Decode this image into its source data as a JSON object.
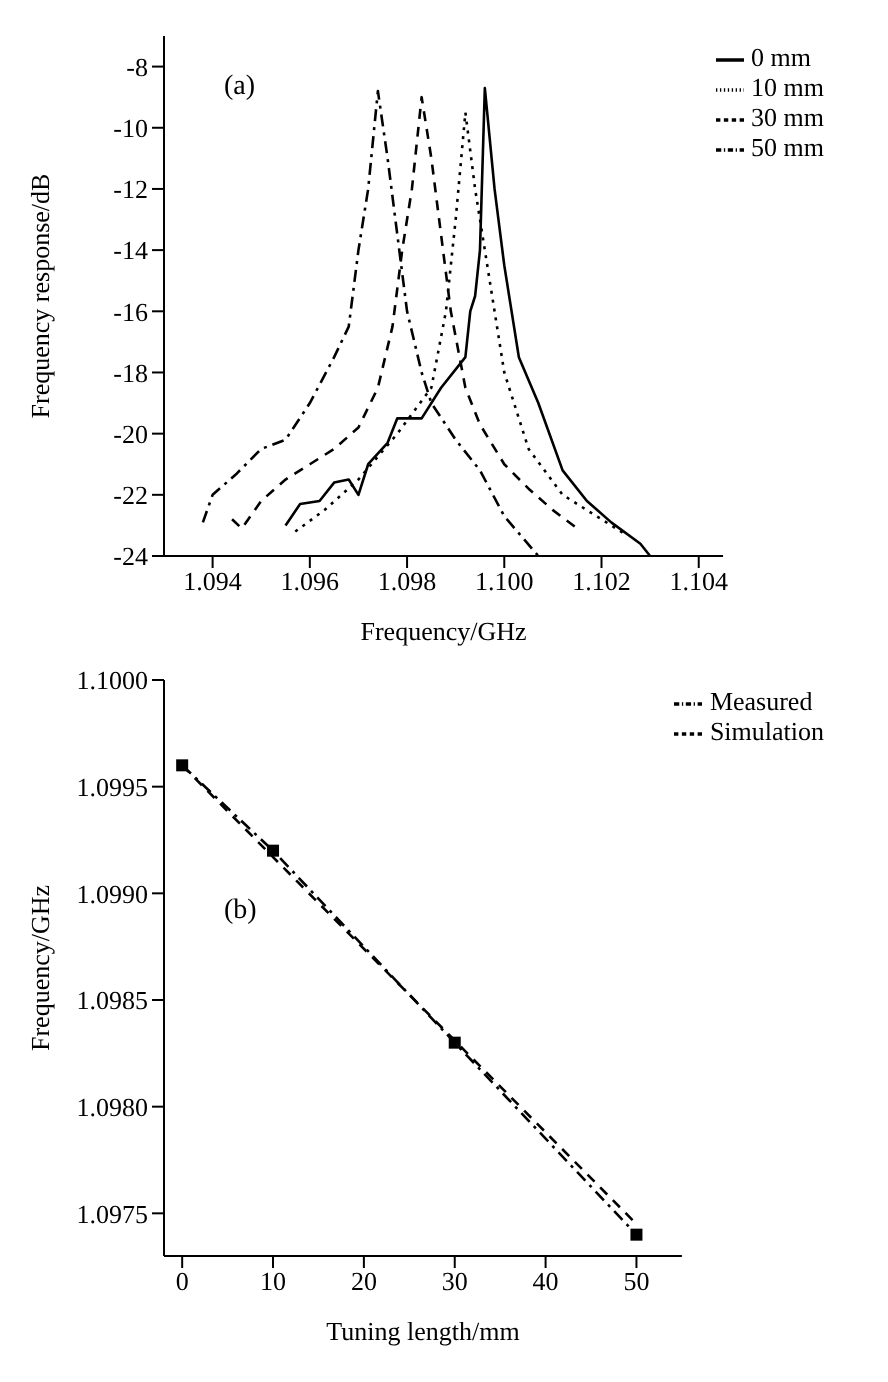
{
  "chart_data": [
    {
      "type": "line",
      "xlabel": "Frequency/GHz",
      "ylabel": "Frequency response/dB",
      "annotations": [
        "(a)"
      ],
      "xlim": [
        1.093,
        1.1045
      ],
      "ylim": [
        -24,
        -7
      ],
      "xticks": [
        1.094,
        1.096,
        1.098,
        {
          "value": 1.1,
          "label": "1.100"
        },
        1.102,
        1.104
      ],
      "yticks": [
        -24,
        -22,
        -20,
        -18,
        -16,
        -14,
        -12,
        -10,
        -8
      ],
      "legend": "top right",
      "grid": false,
      "marker": "none",
      "series": [
        {
          "name": "0 mm",
          "color": "#000000",
          "line_style": "solid",
          "x": [
            1.0955,
            1.0958,
            1.0962,
            1.0965,
            1.0968,
            1.097,
            1.0972,
            1.0976,
            1.0978,
            1.0983,
            1.0987,
            1.0992,
            1.0993,
            1.0994,
            1.0995,
            1.0996,
            1.0998,
            1.1,
            1.1003,
            1.1007,
            1.1012,
            1.1017,
            1.1022,
            1.1028,
            1.103
          ],
          "values": [
            -23,
            -22.3,
            -22.2,
            -21.6,
            -21.5,
            -22,
            -21,
            -20.3,
            -19.5,
            -19.5,
            -18.5,
            -17.5,
            -16,
            -15.5,
            -14,
            -8.7,
            -12,
            -14.5,
            -17.5,
            -19,
            -21.2,
            -22.2,
            -22.9,
            -23.6,
            -24
          ]
        },
        {
          "name": "10 mm",
          "color": "#000000",
          "line_style": "dotted",
          "x": [
            1.0957,
            1.0963,
            1.097,
            1.0978,
            1.0985,
            1.0988,
            1.099,
            1.0992,
            1.0994,
            1.0997,
            1.1,
            1.1005,
            1.1012,
            1.102,
            1.1025
          ],
          "values": [
            -23.2,
            -22.5,
            -21.5,
            -20,
            -18.5,
            -16,
            -13,
            -9.5,
            -12,
            -15,
            -18,
            -20.5,
            -22,
            -22.8,
            -23.3
          ]
        },
        {
          "name": "30 mm",
          "color": "#000000",
          "line_style": "dashed",
          "x": [
            1.0944,
            1.0946,
            1.095,
            1.0955,
            1.096,
            1.0965,
            1.097,
            1.0974,
            1.0977,
            1.0979,
            1.0981,
            1.0983,
            1.0985,
            1.0987,
            1.0989,
            1.0992,
            1.0995,
            1.1,
            1.1005,
            1.101,
            1.1015
          ],
          "values": [
            -22.8,
            -23.1,
            -22.2,
            -21.5,
            -21,
            -20.5,
            -19.8,
            -18.5,
            -16.5,
            -14,
            -12,
            -9,
            -11,
            -13.5,
            -16,
            -18.5,
            -19.7,
            -21,
            -21.8,
            -22.5,
            -23.1
          ]
        },
        {
          "name": "50 mm",
          "color": "#000000",
          "line_style": "dashdot",
          "x": [
            1.0938,
            1.094,
            1.0945,
            1.095,
            1.0955,
            1.096,
            1.0965,
            1.0968,
            1.097,
            1.0972,
            1.0974,
            1.0976,
            1.0978,
            1.098,
            1.0983,
            1.0985,
            1.099,
            1.0995,
            1.1,
            1.1007
          ],
          "values": [
            -22.9,
            -22,
            -21.3,
            -20.5,
            -20.2,
            -19,
            -17.5,
            -16.5,
            -14,
            -12,
            -8.8,
            -11,
            -13.5,
            -16,
            -18,
            -19,
            -20.2,
            -21.2,
            -22.7,
            -24
          ]
        }
      ]
    },
    {
      "type": "line",
      "xlabel": "Tuning length/mm",
      "ylabel": "Frequency/GHz",
      "annotations": [
        "(b)"
      ],
      "xlim": [
        -2,
        55
      ],
      "ylim": [
        1.0973,
        1.1
      ],
      "xticks": [
        0,
        10,
        20,
        30,
        40,
        50
      ],
      "yticks": [
        {
          "value": 1.0975,
          "label": "1.0975"
        },
        {
          "value": 1.098,
          "label": "1.0980"
        },
        {
          "value": 1.0985,
          "label": "1.0985"
        },
        {
          "value": 1.099,
          "label": "1.0990"
        },
        {
          "value": 1.0995,
          "label": "1.0995"
        },
        {
          "value": 1.1,
          "label": "1.1000"
        }
      ],
      "legend": "top right",
      "grid": false,
      "series": [
        {
          "name": "Measured",
          "color": "#000000",
          "line_style": "dashdot",
          "marker": "square",
          "x": [
            0,
            10,
            30,
            50
          ],
          "values": [
            1.0996,
            1.0992,
            1.0983,
            1.0974
          ]
        },
        {
          "name": "Simulation",
          "color": "#000000",
          "line_style": "dashed",
          "marker": "none",
          "x": [
            0,
            50
          ],
          "values": [
            1.0996,
            1.09745
          ]
        }
      ]
    }
  ]
}
